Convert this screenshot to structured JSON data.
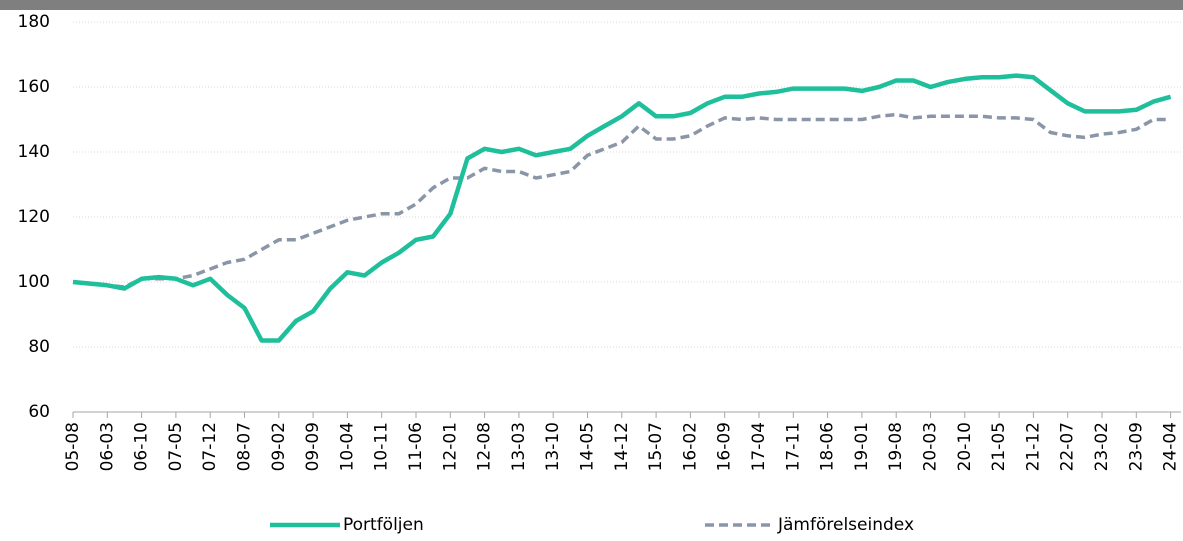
{
  "chart_data": {
    "type": "line",
    "categories": [
      "05-08",
      null,
      "06-03",
      null,
      "06-10",
      null,
      "07-05",
      null,
      "07-12",
      null,
      "08-07",
      null,
      "09-02",
      null,
      "09-09",
      null,
      "10-04",
      null,
      "10-11",
      null,
      "11-06",
      null,
      "12-01",
      null,
      "12-08",
      null,
      "13-03",
      null,
      "13-10",
      null,
      "14-05",
      null,
      "14-12",
      null,
      "15-07",
      null,
      "16-02",
      null,
      "16-09",
      null,
      "17-04",
      null,
      "17-11",
      null,
      "18-06",
      null,
      "19-01",
      null,
      "19-08",
      null,
      "20-03",
      null,
      "20-10",
      null,
      "21-05",
      null,
      "21-12",
      null,
      "22-07",
      null,
      "23-02",
      null,
      "23-09",
      null,
      "24-04"
    ],
    "series": [
      {
        "name": "Portföljen",
        "color": "#1fbf9b",
        "dash": false,
        "values": [
          100,
          99.5,
          99,
          98,
          101,
          101.5,
          101,
          99,
          101,
          96,
          92,
          82,
          82,
          88,
          91,
          98,
          103,
          102,
          106,
          109,
          113,
          114,
          121,
          138,
          141,
          140,
          141,
          139,
          140,
          141,
          145,
          148,
          151,
          155,
          151,
          151,
          152,
          155,
          157,
          157,
          158,
          158.5,
          159.5,
          159.5,
          159.5,
          159.5,
          158.8,
          160,
          162,
          162,
          160,
          161.5,
          162.5,
          163,
          163,
          163.5,
          163,
          159,
          155,
          152.5,
          152.5,
          152.5,
          153,
          155.5,
          157
        ]
      },
      {
        "name": "Jämförelseindex",
        "color": "#8a96a8",
        "dash": true,
        "values": [
          100,
          99.5,
          99,
          98.5,
          101,
          101,
          101,
          102,
          104,
          106,
          107,
          110,
          113,
          113,
          115,
          117,
          119,
          120,
          121,
          121,
          124,
          129,
          132,
          132,
          135,
          134,
          134,
          132,
          133,
          134,
          139,
          141,
          143,
          148,
          144,
          144,
          145,
          148,
          150.5,
          150,
          150.5,
          150,
          150,
          150,
          150,
          150,
          150,
          151,
          151.5,
          150.5,
          151,
          151,
          151,
          151,
          150.5,
          150.5,
          150,
          146,
          145,
          144.5,
          145.5,
          146,
          147,
          150,
          150
        ]
      }
    ],
    "ylim": [
      60,
      180
    ],
    "yticks": [
      60,
      80,
      100,
      120,
      140,
      160,
      180
    ],
    "grid": true,
    "legend": "bottom"
  }
}
